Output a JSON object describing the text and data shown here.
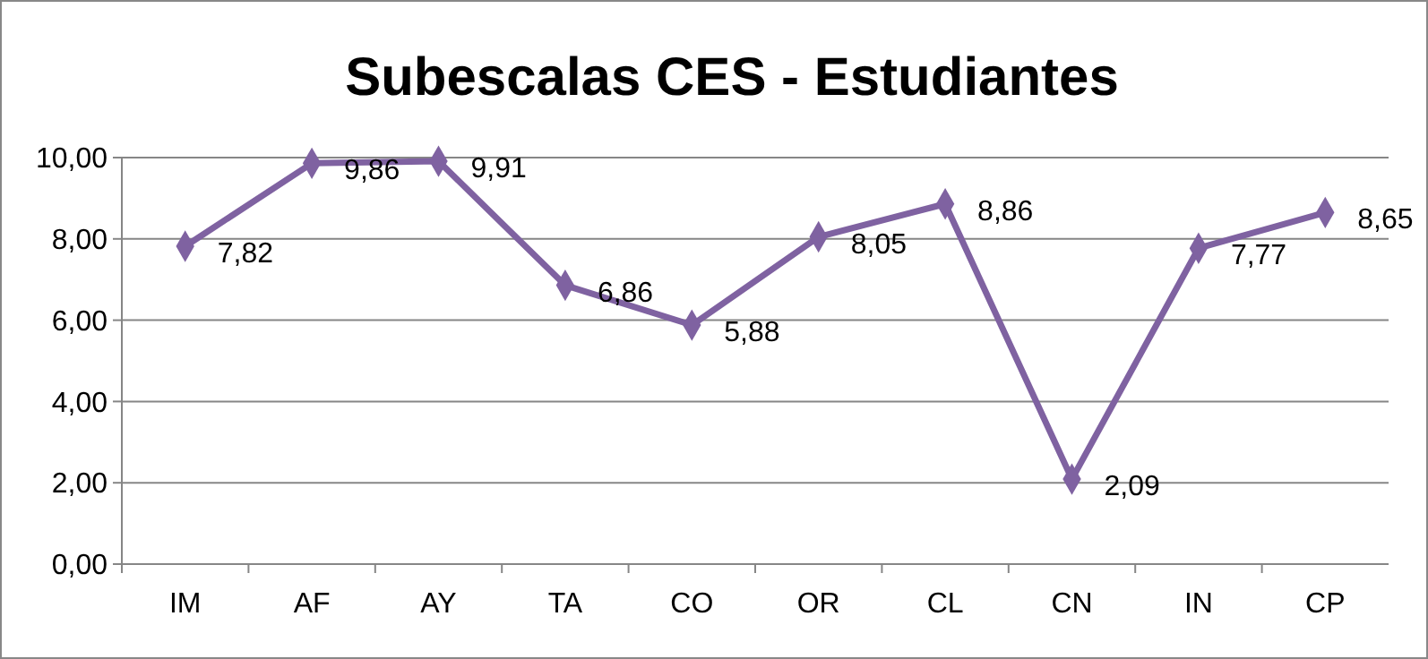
{
  "chart_data": {
    "type": "line",
    "title": "Subescalas CES - Estudiantes",
    "categories": [
      "IM",
      "AF",
      "AY",
      "TA",
      "CO",
      "OR",
      "CL",
      "CN",
      "IN",
      "CP"
    ],
    "series": [
      {
        "color": "#7f62a1",
        "values": [
          7.82,
          9.86,
          9.91,
          6.86,
          5.88,
          8.05,
          8.86,
          2.09,
          7.77,
          8.65
        ]
      }
    ],
    "value_labels": [
      "7,82",
      "9,86",
      "9,91",
      "6,86",
      "5,88",
      "8,05",
      "8,86",
      "2,09",
      "7,77",
      "8,65"
    ],
    "ylim": [
      0,
      10
    ],
    "yticks": [
      {
        "value": 0,
        "label": "0,00"
      },
      {
        "value": 2,
        "label": "2,00"
      },
      {
        "value": 4,
        "label": "4,00"
      },
      {
        "value": 6,
        "label": "6,00"
      },
      {
        "value": 8,
        "label": "8,00"
      },
      {
        "value": 10,
        "label": "10,00"
      }
    ],
    "grid": "y",
    "marker": "diamond",
    "line_style": "solid"
  }
}
